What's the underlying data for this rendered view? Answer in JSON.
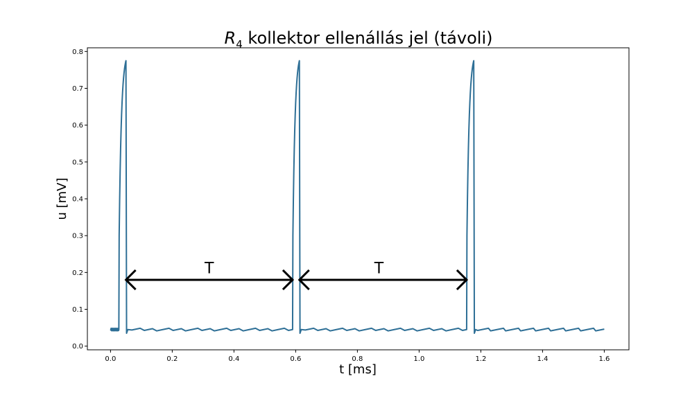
{
  "chart_data": {
    "type": "line",
    "title": {
      "symbol": "R",
      "subscript": "4",
      "text": " kollektor ellenállás jel (távoli)"
    },
    "xlabel": "t [ms]",
    "ylabel": "u [mV]",
    "xlim": [
      -0.075,
      1.68
    ],
    "ylim": [
      -0.01,
      0.81
    ],
    "xticks": [
      0.0,
      0.2,
      0.4,
      0.6,
      0.8,
      1.0,
      1.2,
      1.4,
      1.6
    ],
    "xtick_labels": [
      "0.0",
      "0.2",
      "0.4",
      "0.6",
      "0.8",
      "1.0",
      "1.2",
      "1.4",
      "1.6"
    ],
    "yticks": [
      0.0,
      0.1,
      0.2,
      0.3,
      0.4,
      0.5,
      0.6,
      0.7,
      0.8
    ],
    "ytick_labels": [
      "0.0",
      "0.1",
      "0.2",
      "0.3",
      "0.4",
      "0.5",
      "0.6",
      "0.7",
      "0.8"
    ],
    "grid": false,
    "series": [
      {
        "color": "#2e6f96",
        "baseline": 0.045,
        "pulses": [
          {
            "start": 0.027,
            "peak_t": 0.05,
            "peak": 0.775,
            "end": 0.052
          },
          {
            "start": 0.59,
            "peak_t": 0.612,
            "peak": 0.775,
            "end": 0.614
          },
          {
            "start": 1.154,
            "peak_t": 1.177,
            "peak": 0.775,
            "end": 1.179
          }
        ],
        "x_range": [
          0.0,
          1.6
        ]
      }
    ],
    "annotations": [
      {
        "text": "T",
        "x_start": 0.05,
        "x_end": 0.59,
        "y": 0.18,
        "label_x": 0.32,
        "label_y": 0.2
      },
      {
        "text": "T",
        "x_start": 0.612,
        "x_end": 1.154,
        "y": 0.18,
        "label_x": 0.87,
        "label_y": 0.2
      }
    ]
  }
}
